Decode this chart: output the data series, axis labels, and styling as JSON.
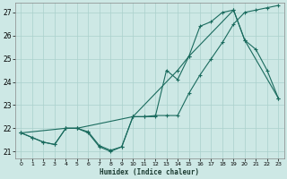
{
  "xlabel": "Humidex (Indice chaleur)",
  "xlim": [
    -0.5,
    23.5
  ],
  "ylim": [
    20.7,
    27.4
  ],
  "yticks": [
    21,
    22,
    23,
    24,
    25,
    26,
    27
  ],
  "xticks": [
    0,
    1,
    2,
    3,
    4,
    5,
    6,
    7,
    8,
    9,
    10,
    11,
    12,
    13,
    14,
    15,
    16,
    17,
    18,
    19,
    20,
    21,
    22,
    23
  ],
  "bg_color": "#cde8e5",
  "grid_color": "#aad0cc",
  "line_color": "#1a6b5e",
  "line1_x": [
    0,
    1,
    2,
    3,
    4,
    5,
    6,
    7,
    8,
    9,
    10,
    11,
    12,
    13,
    14,
    15,
    16,
    17,
    18,
    19,
    20,
    21,
    22,
    23
  ],
  "line1_y": [
    21.8,
    21.6,
    21.4,
    21.3,
    22.0,
    22.0,
    21.8,
    21.2,
    21.0,
    21.2,
    22.5,
    22.5,
    22.5,
    24.5,
    24.1,
    25.1,
    26.4,
    26.6,
    27.0,
    27.1,
    25.8,
    25.4,
    24.5,
    23.3
  ],
  "line2_x": [
    0,
    1,
    2,
    3,
    4,
    5,
    6,
    7,
    8,
    9,
    10,
    11,
    12,
    13,
    14,
    15,
    16,
    17,
    18,
    19,
    20,
    21,
    22,
    23
  ],
  "line2_y": [
    21.8,
    21.6,
    21.4,
    21.3,
    22.0,
    22.0,
    21.85,
    21.25,
    21.05,
    21.2,
    22.5,
    22.5,
    22.55,
    22.55,
    22.55,
    23.5,
    24.3,
    25.0,
    25.7,
    26.5,
    27.0,
    27.1,
    27.2,
    27.3
  ],
  "line3_x": [
    0,
    4,
    5,
    10,
    14,
    15,
    19,
    20,
    23
  ],
  "line3_y": [
    21.8,
    22.0,
    22.0,
    22.5,
    24.5,
    25.1,
    27.1,
    25.8,
    23.3
  ]
}
